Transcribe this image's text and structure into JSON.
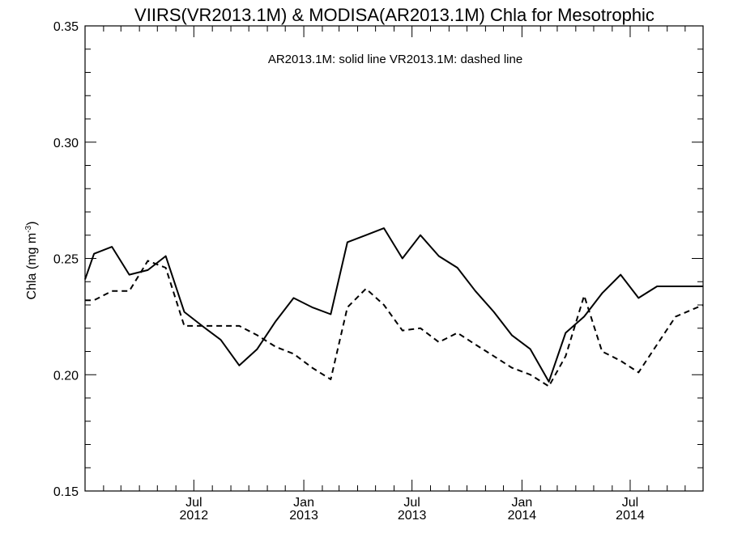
{
  "chart_data": {
    "type": "line",
    "title": "VIIRS(VR2013.1M) & MODISA(AR2013.1M)  Chla for Mesotrophic",
    "annotation": "AR2013.1M: solid line   VR2013.1M: dashed line",
    "ylabel": "Chla (mg m",
    "ylabel_sup": "-3",
    "ylabel_end": ")",
    "ylim": [
      0.15,
      0.35
    ],
    "xlim": [
      "2012-01-01",
      "2014-10-31"
    ],
    "yticks": [
      {
        "value": 0.15,
        "label": "0.15"
      },
      {
        "value": 0.2,
        "label": "0.20"
      },
      {
        "value": 0.25,
        "label": "0.25"
      },
      {
        "value": 0.3,
        "label": "0.30"
      },
      {
        "value": 0.35,
        "label": "0.35"
      }
    ],
    "y_minor_step": 0.01,
    "xticks": [
      {
        "date": "2012-07-01",
        "month": "Jul",
        "year": "2012"
      },
      {
        "date": "2013-01-01",
        "month": "Jan",
        "year": "2013"
      },
      {
        "date": "2013-07-01",
        "month": "Jul",
        "year": "2013"
      },
      {
        "date": "2014-01-01",
        "month": "Jan",
        "year": "2014"
      },
      {
        "date": "2014-07-01",
        "month": "Jul",
        "year": "2014"
      }
    ],
    "series": [
      {
        "style": "solid",
        "x": [
          "2012-01-01",
          "2012-01-16",
          "2012-02-15",
          "2012-03-15",
          "2012-04-15",
          "2012-05-15",
          "2012-06-15",
          "2012-07-15",
          "2012-08-15",
          "2012-09-15",
          "2012-10-15",
          "2012-11-15",
          "2012-12-15",
          "2013-01-15",
          "2013-02-15",
          "2013-03-15",
          "2013-04-15",
          "2013-05-15",
          "2013-06-15",
          "2013-07-15",
          "2013-08-15",
          "2013-09-15",
          "2013-10-15",
          "2013-11-15",
          "2013-12-15",
          "2014-01-15",
          "2014-02-15",
          "2014-03-15",
          "2014-04-15",
          "2014-05-15",
          "2014-06-15",
          "2014-07-15",
          "2014-08-15",
          "2014-09-15",
          "2014-10-31"
        ],
        "values": [
          0.241,
          0.252,
          0.255,
          0.243,
          0.245,
          0.251,
          0.227,
          0.221,
          0.215,
          0.204,
          0.211,
          0.223,
          0.233,
          0.229,
          0.226,
          0.257,
          0.26,
          0.263,
          0.25,
          0.26,
          0.251,
          0.246,
          0.236,
          0.227,
          0.217,
          0.211,
          0.197,
          0.218,
          0.225,
          0.235,
          0.243,
          0.233,
          0.238,
          0.238,
          0.238
        ]
      },
      {
        "style": "dashed",
        "x": [
          "2012-01-01",
          "2012-01-16",
          "2012-02-15",
          "2012-03-15",
          "2012-04-15",
          "2012-05-15",
          "2012-06-15",
          "2012-07-15",
          "2012-08-15",
          "2012-09-15",
          "2012-10-15",
          "2012-11-15",
          "2012-12-15",
          "2013-01-15",
          "2013-02-15",
          "2013-03-15",
          "2013-04-15",
          "2013-05-15",
          "2013-06-15",
          "2013-07-15",
          "2013-08-15",
          "2013-09-15",
          "2013-10-15",
          "2013-11-15",
          "2013-12-15",
          "2014-01-15",
          "2014-02-15",
          "2014-03-15",
          "2014-04-15",
          "2014-05-15",
          "2014-06-15",
          "2014-07-15",
          "2014-08-15",
          "2014-09-15",
          "2014-10-31"
        ],
        "values": [
          0.232,
          0.232,
          0.236,
          0.236,
          0.249,
          0.246,
          0.221,
          0.221,
          0.221,
          0.221,
          0.217,
          0.212,
          0.209,
          0.203,
          0.198,
          0.229,
          0.237,
          0.23,
          0.219,
          0.22,
          0.214,
          0.218,
          0.213,
          0.208,
          0.203,
          0.2,
          0.195,
          0.208,
          0.234,
          0.21,
          0.206,
          0.201,
          0.213,
          0.225,
          0.23
        ]
      }
    ]
  }
}
